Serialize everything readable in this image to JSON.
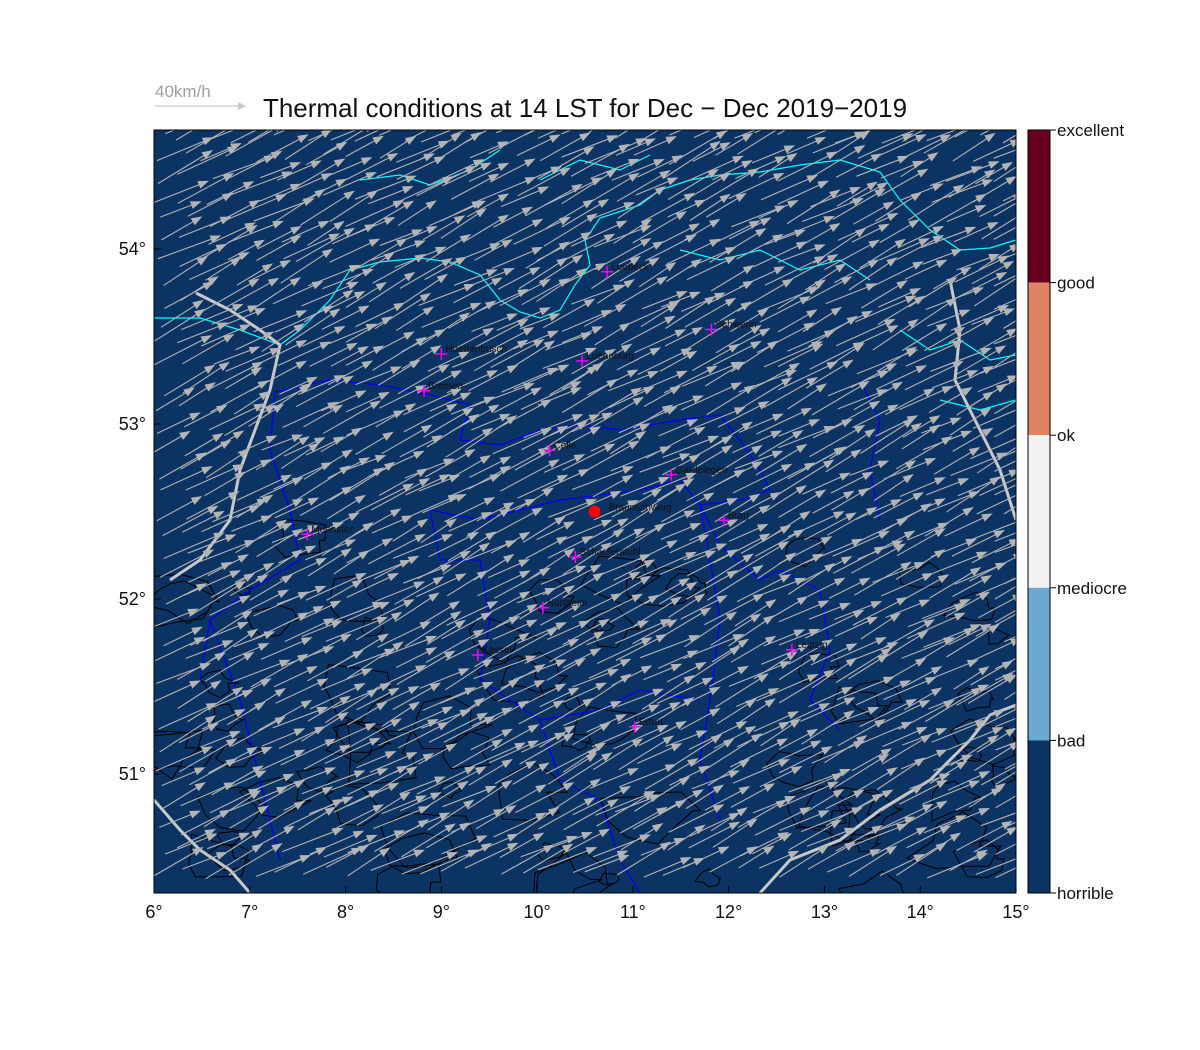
{
  "title": "Thermal conditions at 14 LST for Dec − Dec  2019−2019",
  "reference_arrow": {
    "label": "40km/h",
    "speed_kmh": 40
  },
  "map": {
    "lon_range": [
      6,
      15
    ],
    "lat_range": [
      50.32,
      54.68
    ],
    "background_color": "#0b3363",
    "coastline_color": "#00ffff",
    "border_color": "#0000ff",
    "country_border_color": "#c8c8c8",
    "contour_color": "#000000",
    "arrow_color": "#b4b4b4",
    "city_marker_color": "#ff00ff",
    "site_marker_color": "#ff0000"
  },
  "x_ticks": [
    {
      "value": 6,
      "label": "6°"
    },
    {
      "value": 7,
      "label": "7°"
    },
    {
      "value": 8,
      "label": "8°"
    },
    {
      "value": 9,
      "label": "9°"
    },
    {
      "value": 10,
      "label": "10°"
    },
    {
      "value": 11,
      "label": "11°"
    },
    {
      "value": 12,
      "label": "12°"
    },
    {
      "value": 13,
      "label": "13°"
    },
    {
      "value": 14,
      "label": "14°"
    },
    {
      "value": 15,
      "label": "15°"
    }
  ],
  "y_ticks": [
    {
      "value": 51,
      "label": "51°"
    },
    {
      "value": 52,
      "label": "52°"
    },
    {
      "value": 53,
      "label": "53°"
    },
    {
      "value": 54,
      "label": "54°"
    }
  ],
  "site": {
    "name": "Braunschweig",
    "lon": 10.6,
    "lat": 52.5
  },
  "cities": [
    {
      "name": "Luebeck",
      "lon": 10.73,
      "lat": 53.87
    },
    {
      "name": "Schwerin",
      "lon": 11.82,
      "lat": 53.54
    },
    {
      "name": "Rotenburg",
      "lon": 9.0,
      "lat": 53.4,
      "label": "Hoettenbusch"
    },
    {
      "name": "Lueneburg",
      "lon": 10.47,
      "lat": 53.36
    },
    {
      "name": "Bremen",
      "lon": 8.82,
      "lat": 53.19
    },
    {
      "name": "Celle",
      "lon": 10.13,
      "lat": 52.85
    },
    {
      "name": "Gardelegen",
      "lon": 11.4,
      "lat": 52.71
    },
    {
      "name": "Burg",
      "lon": 11.95,
      "lat": 52.45
    },
    {
      "name": "Muenster",
      "lon": 7.6,
      "lat": 52.37
    },
    {
      "name": "Schaeferstuhl",
      "lon": 10.4,
      "lat": 52.24
    },
    {
      "name": "Northeim",
      "lon": 10.06,
      "lat": 51.95,
      "label": "Northeim"
    },
    {
      "name": "Kassel",
      "lon": 9.38,
      "lat": 51.68
    },
    {
      "name": "Leipzig",
      "lon": 12.66,
      "lat": 51.71
    },
    {
      "name": "Erfurt",
      "lon": 11.02,
      "lat": 51.27
    }
  ],
  "wind_field": {
    "mean_direction_deg_from": 245,
    "mean_speed_kmh": 45
  },
  "colorbar": {
    "levels": [
      {
        "label": "excellent",
        "color": "#67001f"
      },
      {
        "label": "good",
        "color": "#67001f"
      },
      {
        "label": "ok",
        "color": "#e08264"
      },
      {
        "label": "mediocre",
        "color": "#f2f2f2"
      },
      {
        "label": "bad",
        "color": "#6aaad2"
      },
      {
        "label": "horrible",
        "color": "#0b3363"
      }
    ],
    "bands": [
      {
        "color": "#67001f"
      },
      {
        "color": "#e08264"
      },
      {
        "color": "#f2f2f2"
      },
      {
        "color": "#6aaad2"
      },
      {
        "color": "#0b3363"
      }
    ]
  }
}
